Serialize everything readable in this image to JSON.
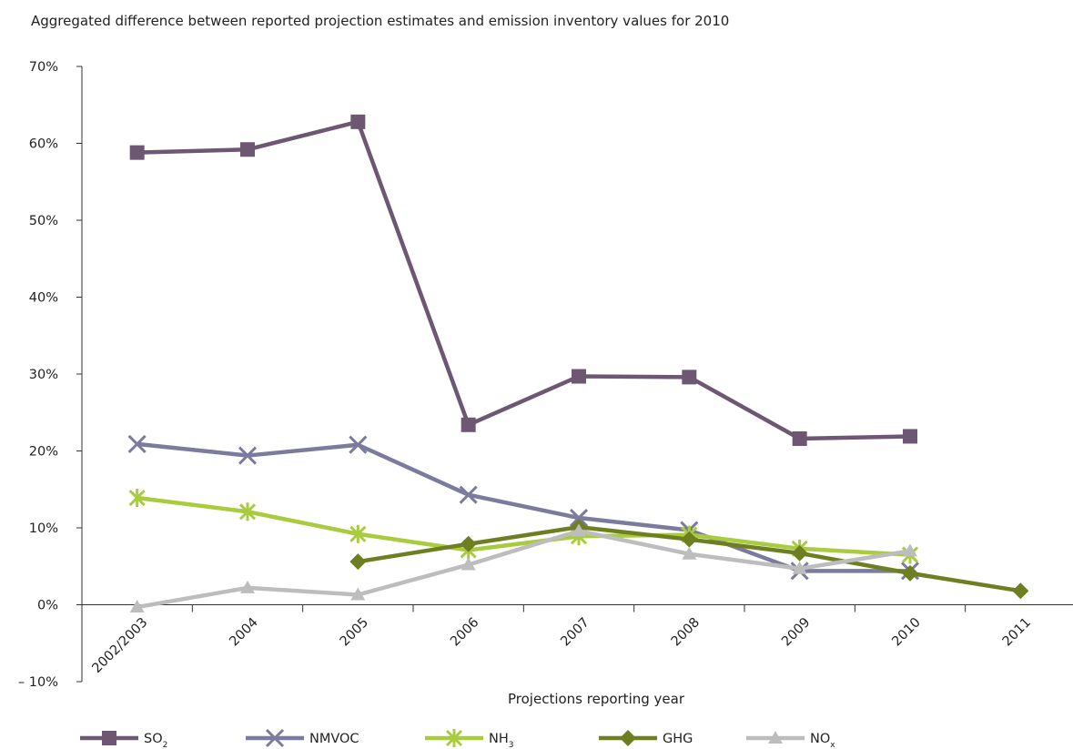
{
  "chart_data": {
    "type": "line",
    "title": "Aggregated difference between reported projection estimates and emission inventory values for 2010",
    "xlabel": "Projections reporting year",
    "ylabel": "",
    "categories": [
      "2002/2003",
      "2004",
      "2005",
      "2006",
      "2007",
      "2008",
      "2009",
      "2010",
      "2011"
    ],
    "ylim": [
      -10,
      70
    ],
    "yticks": [
      -10,
      0,
      10,
      20,
      30,
      40,
      50,
      60,
      70
    ],
    "ytick_labels": [
      "– 10%",
      "0%",
      "10%",
      "20%",
      "30%",
      "40%",
      "50%",
      "60%",
      "70%"
    ],
    "grid": false,
    "legend_position": "bottom",
    "series": [
      {
        "name": "SO",
        "name_sub": "2",
        "color": "#6e5773",
        "marker": "square",
        "values": [
          58.8,
          59.2,
          62.8,
          23.4,
          29.7,
          29.6,
          21.6,
          21.9,
          null
        ]
      },
      {
        "name": "NMVOC",
        "name_sub": "",
        "color": "#7b7b9e",
        "marker": "x",
        "values": [
          20.9,
          19.4,
          20.8,
          14.3,
          11.3,
          9.7,
          4.4,
          4.4,
          null
        ]
      },
      {
        "name": "NH",
        "name_sub": "3",
        "color": "#a9cc3f",
        "marker": "star",
        "values": [
          13.9,
          12.1,
          9.2,
          7.1,
          8.9,
          9.1,
          7.3,
          6.5,
          null
        ]
      },
      {
        "name": "GHG",
        "name_sub": "",
        "color": "#6e7f21",
        "marker": "diamond",
        "values": [
          null,
          null,
          5.6,
          7.9,
          10.1,
          8.5,
          6.7,
          4.1,
          1.8
        ]
      },
      {
        "name": "NO",
        "name_sub": "x",
        "color": "#bdbdbd",
        "marker": "triangle",
        "values": [
          -0.3,
          2.2,
          1.3,
          5.2,
          9.6,
          6.6,
          4.7,
          7.0,
          null
        ]
      }
    ]
  }
}
